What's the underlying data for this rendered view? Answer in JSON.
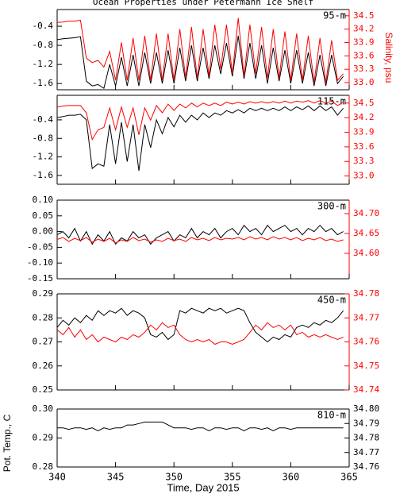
{
  "chart_data": [
    {
      "type": "line",
      "title": "Ocean Properties under Petermann Ice Shelf",
      "y2label": "Salinity, psu",
      "label": "95-m",
      "x": [
        340,
        340.5,
        341,
        341.5,
        342,
        342.5,
        343,
        343.5,
        344,
        344.5,
        345,
        345.5,
        346,
        346.5,
        347,
        347.5,
        348,
        348.5,
        349,
        349.5,
        350,
        350.5,
        351,
        351.5,
        352,
        352.5,
        353,
        353.5,
        354,
        354.5,
        355,
        355.5,
        356,
        356.5,
        357,
        357.5,
        358,
        358.5,
        359,
        359.5,
        360,
        360.5,
        361,
        361.5,
        362,
        362.5,
        363,
        363.5,
        364,
        364.5
      ],
      "xlim": [
        340,
        365
      ],
      "ylim": [
        -1.73,
        -0.05
      ],
      "yticks": [
        -0.4,
        -0.8,
        -1.2,
        -1.6
      ],
      "y2lim": [
        32.84,
        34.64
      ],
      "y2ticks": [
        34.5,
        34.2,
        33.9,
        33.6,
        33.3,
        {
          "value": 33.0,
          "label": "33.0"
        }
      ],
      "series": [
        {
          "color": "#000000",
          "values": [
            -0.68,
            -0.66,
            -0.65,
            -0.64,
            -0.62,
            -1.55,
            -1.65,
            -1.62,
            -1.7,
            -1.2,
            -1.65,
            -1.05,
            -1.65,
            -1.0,
            -1.65,
            -0.95,
            -1.6,
            -0.95,
            -1.6,
            -0.9,
            -1.6,
            -0.85,
            -1.55,
            -0.8,
            -1.55,
            -0.85,
            -1.5,
            -0.8,
            -1.4,
            -0.75,
            -1.45,
            -0.6,
            -1.5,
            -0.75,
            -1.5,
            -0.8,
            -1.6,
            -0.85,
            -1.55,
            -0.9,
            -1.6,
            -0.9,
            -1.6,
            -0.95,
            -1.65,
            -1.0,
            -1.65,
            -1.0,
            -1.6,
            -1.45
          ]
        },
        {
          "color": "#ff0000",
          "axis": "y2",
          "values": [
            34.35,
            34.36,
            34.38,
            34.38,
            34.4,
            33.55,
            33.45,
            33.5,
            33.35,
            33.7,
            33.05,
            33.9,
            33.05,
            34.0,
            33.05,
            34.05,
            33.05,
            34.1,
            33.05,
            34.1,
            33.05,
            34.2,
            33.1,
            34.25,
            33.1,
            34.2,
            33.15,
            34.3,
            33.3,
            34.3,
            33.2,
            34.45,
            33.15,
            34.3,
            33.2,
            34.25,
            33.1,
            34.2,
            33.1,
            34.15,
            33.05,
            34.1,
            33.05,
            34.05,
            33.0,
            34.0,
            33.0,
            33.95,
            33.05,
            33.2
          ]
        }
      ]
    },
    {
      "type": "line",
      "label": "115-m",
      "x": [
        340,
        340.5,
        341,
        341.5,
        342,
        342.5,
        343,
        343.5,
        344,
        344.5,
        345,
        345.5,
        346,
        346.5,
        347,
        347.5,
        348,
        348.5,
        349,
        349.5,
        350,
        350.5,
        351,
        351.5,
        352,
        352.5,
        353,
        353.5,
        354,
        354.5,
        355,
        355.5,
        356,
        356.5,
        357,
        357.5,
        358,
        358.5,
        359,
        359.5,
        360,
        360.5,
        361,
        361.5,
        362,
        362.5,
        363,
        363.5,
        364,
        364.5
      ],
      "xlim": [
        340,
        365
      ],
      "ylim": [
        -1.79,
        0.13
      ],
      "yticks": [
        -0.4,
        -0.8,
        -1.2,
        -1.6
      ],
      "y2lim": [
        32.83,
        34.66
      ],
      "y2ticks": [
        34.5,
        34.2,
        33.9,
        33.6,
        33.3,
        {
          "value": 33.0,
          "label": "33.0"
        }
      ],
      "series": [
        {
          "color": "#000000",
          "values": [
            -0.35,
            -0.33,
            -0.3,
            -0.3,
            -0.28,
            -0.4,
            -1.45,
            -1.35,
            -1.4,
            -0.5,
            -1.35,
            -0.45,
            -1.3,
            -0.5,
            -1.5,
            -0.5,
            -1.0,
            -0.4,
            -0.7,
            -0.35,
            -0.55,
            -0.3,
            -0.45,
            -0.3,
            -0.4,
            -0.25,
            -0.35,
            -0.25,
            -0.3,
            -0.2,
            -0.25,
            -0.18,
            -0.25,
            -0.15,
            -0.2,
            -0.15,
            -0.2,
            -0.15,
            -0.2,
            -0.12,
            -0.2,
            -0.12,
            -0.18,
            -0.1,
            -0.2,
            -0.1,
            -0.2,
            -0.12,
            -0.3,
            -0.15
          ]
        },
        {
          "color": "#ff0000",
          "axis": "y2",
          "values": [
            34.42,
            34.44,
            34.45,
            34.45,
            34.45,
            34.3,
            33.75,
            33.95,
            34.0,
            34.4,
            33.95,
            34.42,
            34.0,
            34.4,
            33.85,
            34.4,
            34.15,
            34.45,
            34.3,
            34.48,
            34.35,
            34.48,
            34.4,
            34.5,
            34.42,
            34.5,
            34.45,
            34.5,
            34.45,
            34.52,
            34.48,
            34.52,
            34.48,
            34.53,
            34.5,
            34.53,
            34.5,
            34.53,
            34.5,
            34.54,
            34.5,
            34.54,
            34.52,
            34.55,
            34.5,
            34.55,
            34.5,
            34.54,
            34.45,
            34.52
          ]
        }
      ]
    },
    {
      "type": "line",
      "label": "300-m",
      "x": [
        340,
        340.5,
        341,
        341.5,
        342,
        342.5,
        343,
        343.5,
        344,
        344.5,
        345,
        345.5,
        346,
        346.5,
        347,
        347.5,
        348,
        348.5,
        349,
        349.5,
        350,
        350.5,
        351,
        351.5,
        352,
        352.5,
        353,
        353.5,
        354,
        354.5,
        355,
        355.5,
        356,
        356.5,
        357,
        357.5,
        358,
        358.5,
        359,
        359.5,
        360,
        360.5,
        361,
        361.5,
        362,
        362.5,
        363,
        363.5,
        364,
        364.5
      ],
      "xlim": [
        340,
        365
      ],
      "ylim": [
        -0.15,
        0.1
      ],
      "yticks": [
        {
          "value": 0.1,
          "label": "0.10"
        },
        0.05,
        {
          "value": 0,
          "label": "0.00"
        },
        -0.05,
        {
          "value": -0.1,
          "label": "-0.10"
        },
        -0.15
      ],
      "y2lim": [
        34.536,
        34.734
      ],
      "y2ticks": [
        {
          "value": 34.7,
          "label": "34.70"
        },
        34.65,
        {
          "value": 34.6,
          "label": "34.60"
        }
      ],
      "series": [
        {
          "color": "#000000",
          "values": [
            -0.01,
            0.0,
            -0.02,
            0.01,
            -0.03,
            0.0,
            -0.04,
            -0.01,
            -0.03,
            0.0,
            -0.04,
            -0.02,
            -0.03,
            0.0,
            -0.02,
            -0.01,
            -0.04,
            -0.02,
            -0.01,
            0.0,
            -0.03,
            -0.01,
            -0.02,
            0.01,
            -0.02,
            0.0,
            -0.01,
            0.01,
            -0.02,
            0.0,
            0.01,
            -0.01,
            0.02,
            0.0,
            0.01,
            -0.01,
            0.02,
            0.0,
            0.01,
            0.02,
            0.0,
            0.01,
            -0.01,
            0.01,
            0.0,
            0.02,
            0.0,
            0.01,
            -0.01,
            0.0
          ]
        },
        {
          "color": "#ff0000",
          "axis": "y2",
          "values": [
            34.635,
            34.64,
            34.63,
            34.638,
            34.632,
            34.64,
            34.628,
            34.636,
            34.63,
            34.638,
            34.626,
            34.634,
            34.63,
            34.64,
            34.632,
            34.636,
            34.628,
            34.634,
            34.63,
            34.638,
            34.632,
            34.636,
            34.63,
            34.64,
            34.634,
            34.638,
            34.632,
            34.64,
            34.634,
            34.638,
            34.636,
            34.64,
            34.634,
            34.642,
            34.636,
            34.64,
            34.634,
            34.642,
            34.636,
            34.64,
            34.634,
            34.64,
            34.632,
            34.638,
            34.634,
            34.64,
            34.632,
            34.636,
            34.63,
            34.634
          ]
        }
      ]
    },
    {
      "type": "line",
      "label": "450-m",
      "x": [
        340,
        340.5,
        341,
        341.5,
        342,
        342.5,
        343,
        343.5,
        344,
        344.5,
        345,
        345.5,
        346,
        346.5,
        347,
        347.5,
        348,
        348.5,
        349,
        349.5,
        350,
        350.5,
        351,
        351.5,
        352,
        352.5,
        353,
        353.5,
        354,
        354.5,
        355,
        355.5,
        356,
        356.5,
        357,
        357.5,
        358,
        358.5,
        359,
        359.5,
        360,
        360.5,
        361,
        361.5,
        362,
        362.5,
        363,
        363.5,
        364,
        364.5
      ],
      "xlim": [
        340,
        365
      ],
      "ylim": [
        0.25,
        0.29
      ],
      "yticks": [
        0.29,
        0.28,
        0.27,
        0.26,
        0.25
      ],
      "y2lim": [
        34.74,
        34.78
      ],
      "y2ticks": [
        34.78,
        34.77,
        34.76,
        34.75,
        34.74
      ],
      "series": [
        {
          "color": "#000000",
          "values": [
            0.276,
            0.279,
            0.277,
            0.28,
            0.278,
            0.281,
            0.279,
            0.283,
            0.281,
            0.283,
            0.282,
            0.284,
            0.281,
            0.283,
            0.282,
            0.28,
            0.273,
            0.272,
            0.274,
            0.271,
            0.273,
            0.283,
            0.282,
            0.284,
            0.283,
            0.282,
            0.284,
            0.283,
            0.284,
            0.282,
            0.283,
            0.284,
            0.283,
            0.278,
            0.274,
            0.272,
            0.27,
            0.272,
            0.271,
            0.273,
            0.272,
            0.276,
            0.277,
            0.276,
            0.278,
            0.277,
            0.279,
            0.278,
            0.28,
            0.283
          ]
        },
        {
          "color": "#ff0000",
          "axis": "y2",
          "values": [
            34.765,
            34.763,
            34.766,
            34.762,
            34.765,
            34.761,
            34.763,
            34.76,
            34.762,
            34.761,
            34.76,
            34.762,
            34.761,
            34.763,
            34.762,
            34.764,
            34.767,
            34.765,
            34.768,
            34.766,
            34.767,
            34.763,
            34.761,
            34.76,
            34.761,
            34.76,
            34.761,
            34.759,
            34.76,
            34.76,
            34.759,
            34.76,
            34.761,
            34.764,
            34.767,
            34.765,
            34.768,
            34.766,
            34.767,
            34.765,
            34.767,
            34.763,
            34.764,
            34.762,
            34.763,
            34.762,
            34.763,
            34.762,
            34.761,
            34.762
          ]
        }
      ]
    },
    {
      "type": "line",
      "label": "810-m",
      "xlabel": "Time, Day 2015",
      "ylabel": "Pot. Temp., C",
      "x": [
        340,
        340.5,
        341,
        341.5,
        342,
        342.5,
        343,
        343.5,
        344,
        344.5,
        345,
        345.5,
        346,
        346.5,
        347,
        347.5,
        348,
        348.5,
        349,
        349.5,
        350,
        350.5,
        351,
        351.5,
        352,
        352.5,
        353,
        353.5,
        354,
        354.5,
        355,
        355.5,
        356,
        356.5,
        357,
        357.5,
        358,
        358.5,
        359,
        359.5,
        360,
        360.5,
        361,
        361.5,
        362,
        362.5,
        363,
        363.5,
        364,
        364.5
      ],
      "xlim": [
        340,
        365
      ],
      "xticks": [
        340,
        345,
        350,
        355,
        360,
        365
      ],
      "ylim": [
        0.28,
        0.3
      ],
      "yticks": [
        {
          "value": 0.3,
          "label": "0.30"
        },
        0.29,
        0.28
      ],
      "y2lim": [
        34.76,
        34.8
      ],
      "y2ticks": [
        {
          "value": 34.8,
          "label": "34.80"
        },
        34.79,
        34.78,
        34.77,
        34.76
      ],
      "series": [
        {
          "color": "#000000",
          "values": [
            0.2935,
            0.2935,
            0.293,
            0.2935,
            0.2935,
            0.293,
            0.2935,
            0.2925,
            0.2935,
            0.293,
            0.2935,
            0.2935,
            0.2945,
            0.2945,
            0.295,
            0.2955,
            0.2955,
            0.2955,
            0.2955,
            0.2945,
            0.2935,
            0.2935,
            0.2935,
            0.293,
            0.2935,
            0.2935,
            0.2925,
            0.2935,
            0.2935,
            0.293,
            0.2935,
            0.2935,
            0.2925,
            0.2935,
            0.2935,
            0.293,
            0.2935,
            0.2925,
            0.2935,
            0.2935,
            0.293,
            0.2935,
            0.2935,
            0.2935,
            0.2935,
            0.2935,
            0.2935,
            0.2935,
            0.2935,
            0.2935
          ]
        }
      ]
    }
  ]
}
